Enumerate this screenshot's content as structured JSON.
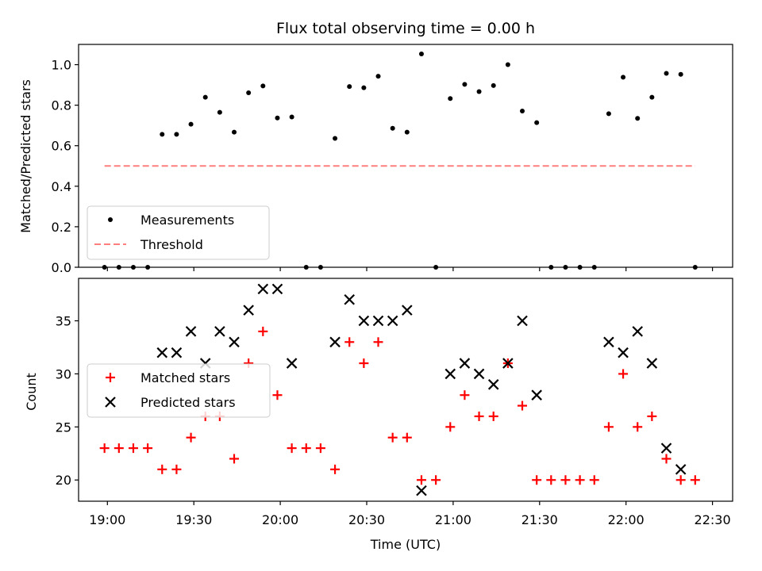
{
  "chart_data": {
    "type": "scatter",
    "title": "Flux total observing time = 0.00 h",
    "xlabel": "Time (UTC)",
    "x_tick_labels": [
      "19:00",
      "19:30",
      "20:00",
      "20:30",
      "21:00",
      "21:30",
      "22:00",
      "22:30"
    ],
    "x_tick_minutes": [
      1140,
      1170,
      1200,
      1230,
      1260,
      1290,
      1320,
      1350
    ],
    "xlim": [
      1130,
      1357
    ],
    "x_times": [
      "18:59",
      "19:04",
      "19:09",
      "19:14",
      "19:19",
      "19:24",
      "19:29",
      "19:34",
      "19:39",
      "19:44",
      "19:49",
      "19:54",
      "19:59",
      "20:04",
      "20:09",
      "20:14",
      "20:19",
      "20:24",
      "20:29",
      "20:34",
      "20:39",
      "20:44",
      "20:49",
      "20:54",
      "20:59",
      "21:04",
      "21:09",
      "21:14",
      "21:19",
      "21:24",
      "21:29",
      "21:34",
      "21:39",
      "21:44",
      "21:49",
      "21:54",
      "21:59",
      "22:04",
      "22:09",
      "22:14",
      "22:19",
      "22:24"
    ],
    "panels": [
      {
        "ylabel": "Matched/Predicted stars",
        "ylim": [
          0,
          1.1
        ],
        "y_ticks": [
          "0.0",
          "0.2",
          "0.4",
          "0.6",
          "0.8",
          "1.0"
        ],
        "threshold": 0.5,
        "threshold_range": [
          "18:59",
          "22:24"
        ],
        "series": [
          {
            "name": "Measurements",
            "color": "#000000",
            "marker": "dot",
            "values": [
              0,
              0,
              0,
              0,
              0.656,
              0.656,
              0.706,
              0.839,
              0.765,
              0.667,
              0.861,
              0.895,
              0.737,
              0.742,
              0,
              0,
              0.636,
              0.892,
              0.886,
              0.943,
              0.686,
              0.667,
              1.053,
              0,
              0.833,
              0.903,
              0.867,
              0.897,
              1.0,
              0.771,
              0.714,
              0,
              0,
              0,
              0,
              0.758,
              0.938,
              0.735,
              0.839,
              0.957,
              0.952,
              0
            ]
          }
        ],
        "legend": [
          "Measurements",
          "Threshold"
        ],
        "legend_position": "lower-left"
      },
      {
        "ylabel": "Count",
        "ylim": [
          18,
          39
        ],
        "y_ticks": [
          "20",
          "25",
          "30",
          "35"
        ],
        "series": [
          {
            "name": "Matched stars",
            "color": "#ff0000",
            "marker": "plus",
            "values": [
              23,
              23,
              23,
              23,
              21,
              21,
              24,
              26,
              26,
              22,
              31,
              34,
              28,
              23,
              23,
              23,
              21,
              33,
              31,
              33,
              24,
              24,
              20,
              20,
              25,
              28,
              26,
              26,
              31,
              27,
              20,
              20,
              20,
              20,
              20,
              25,
              30,
              25,
              26,
              22,
              20,
              20
            ]
          },
          {
            "name": "Predicted stars",
            "color": "#000000",
            "marker": "x",
            "values": [
              null,
              null,
              null,
              null,
              32,
              32,
              34,
              31,
              34,
              33,
              36,
              38,
              38,
              31,
              null,
              null,
              33,
              37,
              35,
              35,
              35,
              36,
              19,
              null,
              30,
              31,
              30,
              29,
              31,
              35,
              28,
              null,
              null,
              null,
              null,
              33,
              32,
              34,
              31,
              23,
              21,
              null
            ]
          }
        ],
        "legend": [
          "Matched stars",
          "Predicted stars"
        ],
        "legend_position": "center-left"
      }
    ],
    "threshold_color": "#ff7f7f"
  }
}
